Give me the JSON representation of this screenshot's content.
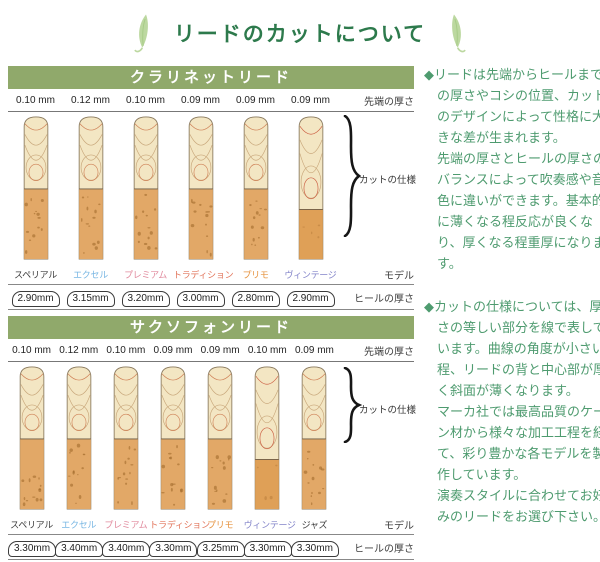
{
  "title": "リードのカットについて",
  "labels": {
    "tip_thickness": "先端の厚さ",
    "model": "モデル",
    "heel_thickness": "ヒールの厚さ",
    "cut_spec": "カットの仕様"
  },
  "colors": {
    "title_green": "#2d7a4c",
    "band_green": "#90a96b",
    "body_text_green": "#4e9b6f",
    "leaf_green": "#bcd8a0",
    "reed_vamp": "#f3e6c3",
    "reed_bark": "#e2a867",
    "vintage_bark": "#dfa057"
  },
  "sections": [
    {
      "name": "クラリネットリード",
      "reeds": [
        {
          "model": "スペリアル",
          "model_color": "#3c3c3c",
          "tip": "0.10 mm",
          "heel": "2.90mm",
          "cut_length": "standard"
        },
        {
          "model": "エクセル",
          "model_color": "#79b7e3",
          "tip": "0.12 mm",
          "heel": "3.15mm",
          "cut_length": "standard"
        },
        {
          "model": "プレミアム",
          "model_color": "#e18b9e",
          "tip": "0.10 mm",
          "heel": "3.20mm",
          "cut_length": "standard"
        },
        {
          "model": "トラディション",
          "model_color": "#e2765c",
          "tip": "0.09 mm",
          "heel": "3.00mm",
          "cut_length": "standard"
        },
        {
          "model": "プリモ",
          "model_color": "#e6933f",
          "tip": "0.09 mm",
          "heel": "2.80mm",
          "cut_length": "standard"
        },
        {
          "model": "ヴィンテージ",
          "model_color": "#8384c9",
          "tip": "0.09 mm",
          "heel": "2.90mm",
          "cut_length": "long"
        }
      ]
    },
    {
      "name": "サクソフォンリード",
      "reeds": [
        {
          "model": "スペリアル",
          "model_color": "#3c3c3c",
          "tip": "0.10 mm",
          "heel": "3.30mm",
          "cut_length": "standard"
        },
        {
          "model": "エクセル",
          "model_color": "#79b7e3",
          "tip": "0.12 mm",
          "heel": "3.40mm",
          "cut_length": "standard"
        },
        {
          "model": "プレミアム",
          "model_color": "#e18b9e",
          "tip": "0.10 mm",
          "heel": "3.40mm",
          "cut_length": "standard"
        },
        {
          "model": "トラディション",
          "model_color": "#e2765c",
          "tip": "0.09 mm",
          "heel": "3.30mm",
          "cut_length": "standard"
        },
        {
          "model": "プリモ",
          "model_color": "#e6933f",
          "tip": "0.09 mm",
          "heel": "3.25mm",
          "cut_length": "standard"
        },
        {
          "model": "ヴィンテージ",
          "model_color": "#8384c9",
          "tip": "0.10 mm",
          "heel": "3.30mm",
          "cut_length": "long"
        },
        {
          "model": "ジャズ",
          "model_color": "#3c3c3c",
          "tip": "0.09 mm",
          "heel": "3.30mm",
          "cut_length": "standard"
        }
      ]
    }
  ],
  "right_column": {
    "paragraphs": [
      "◆リードは先端からヒールまでの厚さやコシの位置、カットのデザインによって性格に大きな差が生まれます。\n先端の厚さとヒールの厚さのバランスによって吹奏感や音色に違いができます。基本的に薄くなる程反応が良くなり、厚くなる程重厚になります。",
      "◆カットの仕様については、厚さの等しい部分を線で表しています。曲線の角度が小さい程、リードの背と中心部が厚く斜面が薄くなります。\nマーカ社では最高品質のケーン材から様々な加工工程を経て、彩り豊かな各モデルを製作しています。\n演奏スタイルに合わせてお好みのリードをお選び下さい。"
    ]
  }
}
